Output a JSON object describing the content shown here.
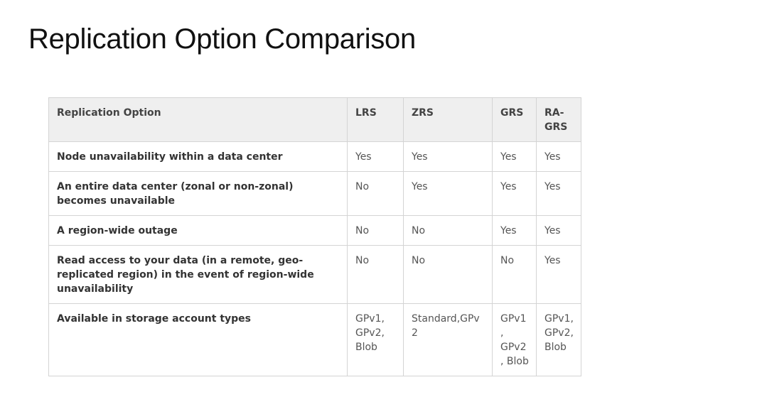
{
  "title": "Replication Option Comparison",
  "table": {
    "headers": [
      "Replication Option",
      "LRS",
      "ZRS",
      "GRS",
      "RA-GRS"
    ],
    "rows": [
      {
        "label": "Node unavailability within a data center",
        "values": [
          "Yes",
          "Yes",
          "Yes",
          "Yes"
        ]
      },
      {
        "label": "An entire data center (zonal or non-zonal) becomes unavailable",
        "values": [
          "No",
          "Yes",
          "Yes",
          "Yes"
        ]
      },
      {
        "label": "A region-wide outage",
        "values": [
          "No",
          "No",
          "Yes",
          "Yes"
        ]
      },
      {
        "label": "Read access to your data (in a remote, geo-replicated region) in the event of region-wide unavailability",
        "values": [
          "No",
          "No",
          "No",
          "Yes"
        ]
      },
      {
        "label": "Available in storage account types",
        "values": [
          "GPv1, GPv2, Blob",
          "Standard,GPv2",
          "GPv1, GPv2, Blob",
          "GPv1, GPv2, Blob"
        ]
      }
    ]
  }
}
